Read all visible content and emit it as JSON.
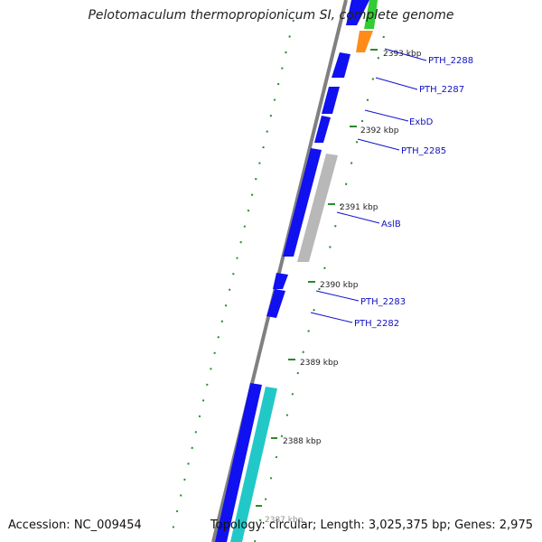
{
  "title": "Pelotomaculum thermopropionicum SI, complete genome",
  "footer": {
    "accession": "Accession: NC_009454",
    "stats": "Topology: circular; Length: 3,025,375 bp; Genes: 2,975"
  },
  "colors": {
    "backbone": "#808080",
    "gene_forward": "#1010f0",
    "gene_gray": "#b8b8b8",
    "gene_orange": "#ff8c1a",
    "gene_green": "#33cc33",
    "gene_cyan": "#22c8c8",
    "tick": "#2a8a2a",
    "label_line": "#1010d0"
  },
  "kbp_ticks": [
    "2387 kbp",
    "2388 kbp",
    "2389 kbp",
    "2390 kbp",
    "2391 kbp",
    "2392 kbp",
    "2393 kbp"
  ],
  "gene_labels": [
    "PTH_2288",
    "PTH_2287",
    "ExbD",
    "PTH_2285",
    "AslB",
    "PTH_2283",
    "PTH_2282"
  ]
}
